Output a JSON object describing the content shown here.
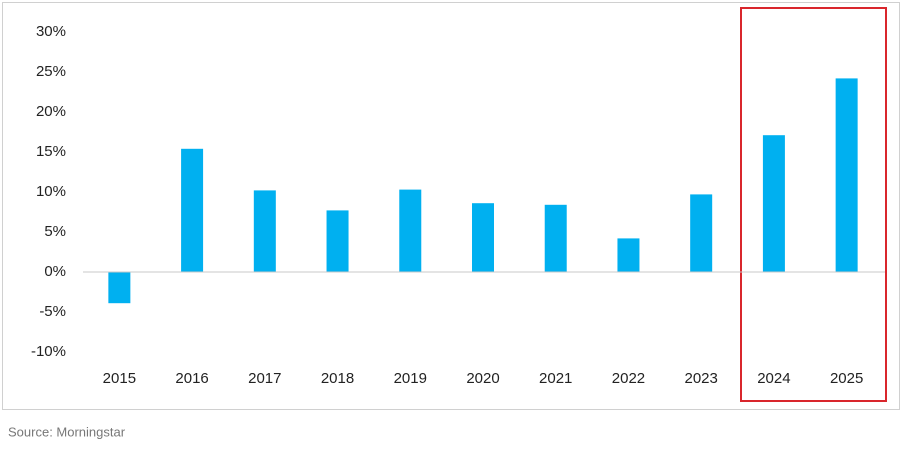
{
  "chart_data": {
    "type": "bar",
    "categories": [
      "2015",
      "2016",
      "2017",
      "2018",
      "2019",
      "2020",
      "2021",
      "2022",
      "2023",
      "2024",
      "2025"
    ],
    "values": [
      -3.9,
      15.4,
      10.2,
      7.7,
      10.3,
      8.6,
      8.4,
      4.2,
      9.7,
      17.1,
      24.2
    ],
    "color": "#00b0f0",
    "ylim": [
      -10,
      30
    ],
    "yticks": [
      {
        "value": -10,
        "label": "-10%"
      },
      {
        "value": -5,
        "label": "-5%"
      },
      {
        "value": 0,
        "label": "0%"
      },
      {
        "value": 5,
        "label": "5%"
      },
      {
        "value": 10,
        "label": "10%"
      },
      {
        "value": 15,
        "label": "15%"
      },
      {
        "value": 20,
        "label": "20%"
      },
      {
        "value": 25,
        "label": "25%"
      },
      {
        "value": 30,
        "label": "30%"
      }
    ],
    "grid": false,
    "source": "Source: Morningstar"
  }
}
